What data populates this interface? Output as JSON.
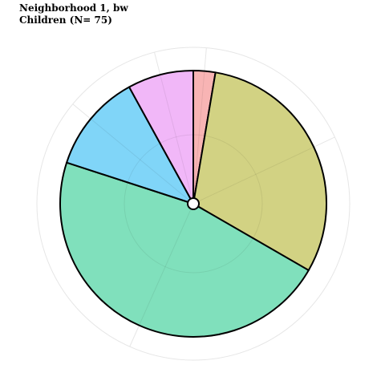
{
  "chart_data": {
    "type": "pie",
    "title": "Neighborhood 1, bw",
    "subtitle": "Children (N= 75)",
    "start_angle_deg": 0,
    "direction": "clockwise",
    "slices": [
      {
        "value": 2,
        "color": "#F8B4B4"
      },
      {
        "value": 23,
        "color": "#D2D283"
      },
      {
        "value": 35,
        "color": "#80E0BC"
      },
      {
        "value": 9,
        "color": "#80D5F8"
      },
      {
        "value": 6,
        "color": "#F1B7F8"
      }
    ],
    "grid": true,
    "legend": "none",
    "colors": {
      "outline": "#000000",
      "grid": "#E6E6E6",
      "background": "#FFFFFF"
    }
  }
}
